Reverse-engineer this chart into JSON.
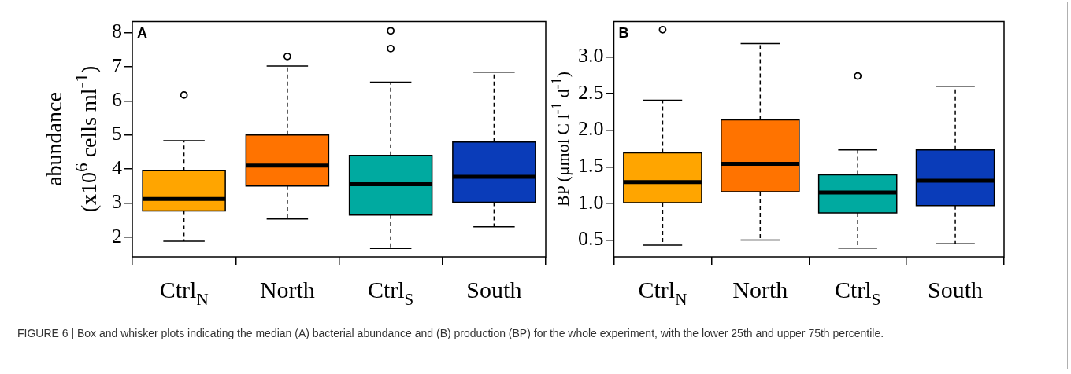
{
  "chart_data": [
    {
      "type": "box",
      "title": "A",
      "ylabel": "abundance\n(x10$^{6}$ cells ml$^{-1}$)",
      "categories": [
        "Ctrl$_{N}$",
        "North",
        "Ctrl$_{S}$",
        "South"
      ],
      "colors": [
        "#ffa500",
        "#ff7300",
        "#00aaa0",
        "#0a3cb9"
      ],
      "boxes": [
        {
          "low": 1.88,
          "q1": 2.77,
          "median": 3.12,
          "q3": 3.95,
          "high": 4.83,
          "outliers": [
            6.17
          ]
        },
        {
          "low": 2.53,
          "q1": 3.5,
          "median": 4.1,
          "q3": 5.0,
          "high": 7.02,
          "outliers": [
            7.3
          ]
        },
        {
          "low": 1.67,
          "q1": 2.65,
          "median": 3.55,
          "q3": 4.4,
          "high": 6.55,
          "outliers": [
            7.53,
            8.05
          ]
        },
        {
          "low": 2.3,
          "q1": 3.02,
          "median": 3.77,
          "q3": 4.79,
          "high": 6.84
        }
      ],
      "ylim": [
        1.42,
        8.32
      ],
      "yticks": [
        2,
        3,
        4,
        5,
        6,
        7,
        8
      ],
      "grid": false,
      "annotations": [
        "FIGURE 6 | Box and whisker plots indicating the median (A) bacterial abundance and (B) production (BP) for the whole experiment, with the lower 25th and upper 75th percentile."
      ]
    },
    {
      "type": "box",
      "title": "B",
      "ylabel": "BP (µmol C l$^{-1}$ d$^{-1}$)",
      "categories": [
        "Ctrl$_{N}$",
        "North",
        "Ctrl$_{S}$",
        "South"
      ],
      "colors": [
        "#ffa500",
        "#ff7300",
        "#00aaa0",
        "#0a3cb9"
      ],
      "boxes": [
        {
          "low": 0.43,
          "q1": 1.01,
          "median": 1.29,
          "q3": 1.69,
          "high": 2.41,
          "outliers": [
            3.37
          ]
        },
        {
          "low": 0.5,
          "q1": 1.16,
          "median": 1.54,
          "q3": 2.14,
          "high": 3.18
        },
        {
          "low": 0.39,
          "q1": 0.87,
          "median": 1.15,
          "q3": 1.39,
          "high": 1.73,
          "outliers": [
            2.74
          ]
        },
        {
          "low": 0.45,
          "q1": 0.97,
          "median": 1.31,
          "q3": 1.73,
          "high": 2.6
        }
      ],
      "ylim": [
        0.27,
        3.48
      ],
      "yticks": [
        {
          "value": 0.5,
          "label": "0.5"
        },
        {
          "value": 1,
          "label": "1.0"
        },
        {
          "value": 1.5,
          "label": "1.5"
        },
        {
          "value": 2,
          "label": "2.0"
        },
        {
          "value": 2.5,
          "label": "2.5"
        },
        {
          "value": 3,
          "label": "3.0"
        }
      ],
      "grid": false
    }
  ]
}
